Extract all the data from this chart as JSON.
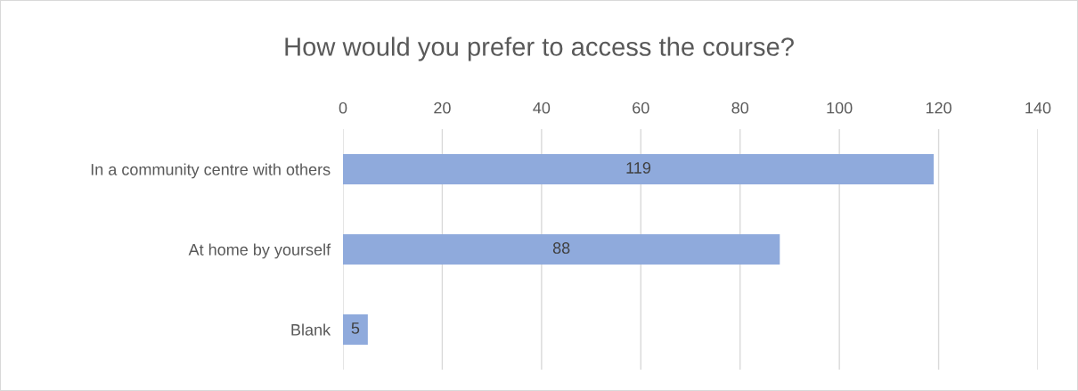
{
  "chart_data": {
    "type": "bar",
    "orientation": "horizontal",
    "title": "How would you prefer to access the course?",
    "categories": [
      "In a community centre with others",
      "At home by yourself",
      "Blank"
    ],
    "values": [
      119,
      88,
      5
    ],
    "color": "#8faadc",
    "xlim": [
      0,
      140
    ],
    "xticks": [
      0,
      20,
      40,
      60,
      80,
      100,
      120,
      140
    ],
    "grid": "x",
    "data_labels": true
  }
}
